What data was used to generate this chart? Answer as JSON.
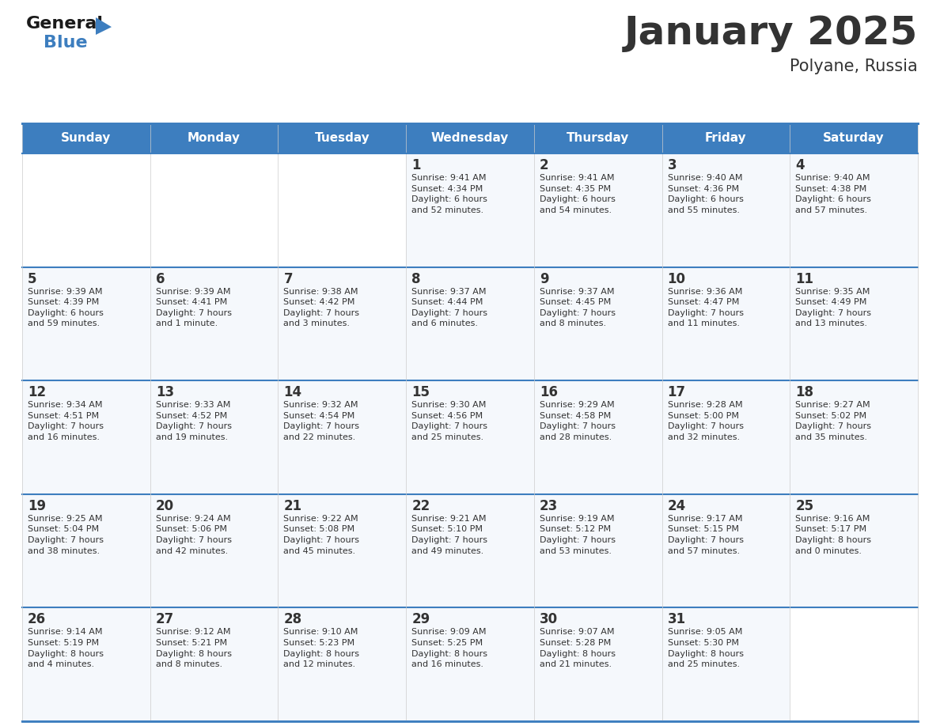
{
  "title": "January 2025",
  "subtitle": "Polyane, Russia",
  "header_color": "#3d7ebf",
  "header_text_color": "#ffffff",
  "cell_bg_color": "#f5f8fc",
  "cell_bg_empty": "#ffffff",
  "border_color": "#3d7ebf",
  "row_line_color": "#3d7ebf",
  "text_color": "#333333",
  "days_of_week": [
    "Sunday",
    "Monday",
    "Tuesday",
    "Wednesday",
    "Thursday",
    "Friday",
    "Saturday"
  ],
  "calendar_data": [
    [
      {
        "day": "",
        "info": ""
      },
      {
        "day": "",
        "info": ""
      },
      {
        "day": "",
        "info": ""
      },
      {
        "day": "1",
        "info": "Sunrise: 9:41 AM\nSunset: 4:34 PM\nDaylight: 6 hours\nand 52 minutes."
      },
      {
        "day": "2",
        "info": "Sunrise: 9:41 AM\nSunset: 4:35 PM\nDaylight: 6 hours\nand 54 minutes."
      },
      {
        "day": "3",
        "info": "Sunrise: 9:40 AM\nSunset: 4:36 PM\nDaylight: 6 hours\nand 55 minutes."
      },
      {
        "day": "4",
        "info": "Sunrise: 9:40 AM\nSunset: 4:38 PM\nDaylight: 6 hours\nand 57 minutes."
      }
    ],
    [
      {
        "day": "5",
        "info": "Sunrise: 9:39 AM\nSunset: 4:39 PM\nDaylight: 6 hours\nand 59 minutes."
      },
      {
        "day": "6",
        "info": "Sunrise: 9:39 AM\nSunset: 4:41 PM\nDaylight: 7 hours\nand 1 minute."
      },
      {
        "day": "7",
        "info": "Sunrise: 9:38 AM\nSunset: 4:42 PM\nDaylight: 7 hours\nand 3 minutes."
      },
      {
        "day": "8",
        "info": "Sunrise: 9:37 AM\nSunset: 4:44 PM\nDaylight: 7 hours\nand 6 minutes."
      },
      {
        "day": "9",
        "info": "Sunrise: 9:37 AM\nSunset: 4:45 PM\nDaylight: 7 hours\nand 8 minutes."
      },
      {
        "day": "10",
        "info": "Sunrise: 9:36 AM\nSunset: 4:47 PM\nDaylight: 7 hours\nand 11 minutes."
      },
      {
        "day": "11",
        "info": "Sunrise: 9:35 AM\nSunset: 4:49 PM\nDaylight: 7 hours\nand 13 minutes."
      }
    ],
    [
      {
        "day": "12",
        "info": "Sunrise: 9:34 AM\nSunset: 4:51 PM\nDaylight: 7 hours\nand 16 minutes."
      },
      {
        "day": "13",
        "info": "Sunrise: 9:33 AM\nSunset: 4:52 PM\nDaylight: 7 hours\nand 19 minutes."
      },
      {
        "day": "14",
        "info": "Sunrise: 9:32 AM\nSunset: 4:54 PM\nDaylight: 7 hours\nand 22 minutes."
      },
      {
        "day": "15",
        "info": "Sunrise: 9:30 AM\nSunset: 4:56 PM\nDaylight: 7 hours\nand 25 minutes."
      },
      {
        "day": "16",
        "info": "Sunrise: 9:29 AM\nSunset: 4:58 PM\nDaylight: 7 hours\nand 28 minutes."
      },
      {
        "day": "17",
        "info": "Sunrise: 9:28 AM\nSunset: 5:00 PM\nDaylight: 7 hours\nand 32 minutes."
      },
      {
        "day": "18",
        "info": "Sunrise: 9:27 AM\nSunset: 5:02 PM\nDaylight: 7 hours\nand 35 minutes."
      }
    ],
    [
      {
        "day": "19",
        "info": "Sunrise: 9:25 AM\nSunset: 5:04 PM\nDaylight: 7 hours\nand 38 minutes."
      },
      {
        "day": "20",
        "info": "Sunrise: 9:24 AM\nSunset: 5:06 PM\nDaylight: 7 hours\nand 42 minutes."
      },
      {
        "day": "21",
        "info": "Sunrise: 9:22 AM\nSunset: 5:08 PM\nDaylight: 7 hours\nand 45 minutes."
      },
      {
        "day": "22",
        "info": "Sunrise: 9:21 AM\nSunset: 5:10 PM\nDaylight: 7 hours\nand 49 minutes."
      },
      {
        "day": "23",
        "info": "Sunrise: 9:19 AM\nSunset: 5:12 PM\nDaylight: 7 hours\nand 53 minutes."
      },
      {
        "day": "24",
        "info": "Sunrise: 9:17 AM\nSunset: 5:15 PM\nDaylight: 7 hours\nand 57 minutes."
      },
      {
        "day": "25",
        "info": "Sunrise: 9:16 AM\nSunset: 5:17 PM\nDaylight: 8 hours\nand 0 minutes."
      }
    ],
    [
      {
        "day": "26",
        "info": "Sunrise: 9:14 AM\nSunset: 5:19 PM\nDaylight: 8 hours\nand 4 minutes."
      },
      {
        "day": "27",
        "info": "Sunrise: 9:12 AM\nSunset: 5:21 PM\nDaylight: 8 hours\nand 8 minutes."
      },
      {
        "day": "28",
        "info": "Sunrise: 9:10 AM\nSunset: 5:23 PM\nDaylight: 8 hours\nand 12 minutes."
      },
      {
        "day": "29",
        "info": "Sunrise: 9:09 AM\nSunset: 5:25 PM\nDaylight: 8 hours\nand 16 minutes."
      },
      {
        "day": "30",
        "info": "Sunrise: 9:07 AM\nSunset: 5:28 PM\nDaylight: 8 hours\nand 21 minutes."
      },
      {
        "day": "31",
        "info": "Sunrise: 9:05 AM\nSunset: 5:30 PM\nDaylight: 8 hours\nand 25 minutes."
      },
      {
        "day": "",
        "info": ""
      }
    ]
  ],
  "logo_general_color": "#1a1a1a",
  "logo_blue_color": "#3d7ebf",
  "logo_triangle_color": "#3d7ebf",
  "title_fontsize": 36,
  "subtitle_fontsize": 15,
  "header_fontsize": 11,
  "day_num_fontsize": 12,
  "cell_text_fontsize": 8
}
